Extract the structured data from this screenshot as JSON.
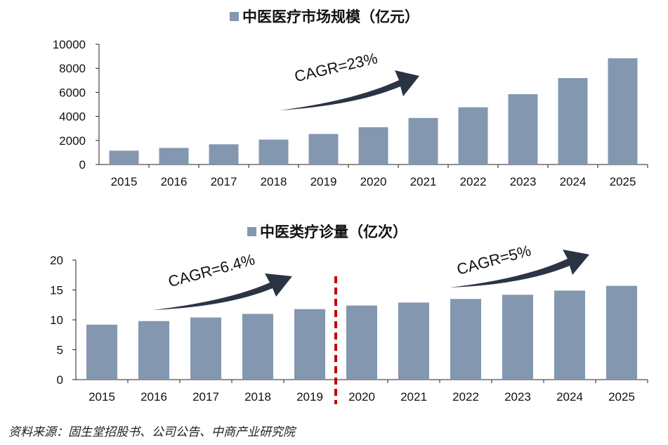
{
  "chart_data": [
    {
      "type": "bar",
      "title": "中医医疗市场规模（亿元）",
      "legend": "top",
      "categories": [
        "2015",
        "2016",
        "2017",
        "2018",
        "2019",
        "2020",
        "2021",
        "2022",
        "2023",
        "2024",
        "2025"
      ],
      "series": [
        {
          "name": "中医医疗市场规模（亿元）",
          "values": [
            1150,
            1380,
            1680,
            2070,
            2540,
            3100,
            3870,
            4760,
            5850,
            7190,
            8840
          ]
        }
      ],
      "ylim": [
        0,
        10000
      ],
      "yticks": [
        "0",
        "2000",
        "4000",
        "6000",
        "8000",
        "10000"
      ],
      "grid": false,
      "annotations": [
        {
          "text": "CAGR=23%"
        }
      ],
      "colors": {
        "bar": "#8497B0",
        "arrow": "#2B3445"
      }
    },
    {
      "type": "bar",
      "title": "中医类疗诊量（亿次）",
      "legend": "top",
      "categories": [
        "2015",
        "2016",
        "2017",
        "2018",
        "2019",
        "2020",
        "2021",
        "2022",
        "2023",
        "2024",
        "2025"
      ],
      "series": [
        {
          "name": "中医类疗诊量（亿次）",
          "values": [
            9.2,
            9.8,
            10.4,
            11.0,
            11.8,
            12.4,
            12.9,
            13.5,
            14.2,
            14.9,
            15.7
          ]
        }
      ],
      "ylim": [
        0,
        20
      ],
      "yticks": [
        "0",
        "5",
        "10",
        "15",
        "20"
      ],
      "grid": false,
      "annotations": [
        {
          "text": "CAGR=6.4%"
        },
        {
          "text": "CAGR=5%"
        }
      ],
      "colors": {
        "bar": "#8497B0",
        "arrow": "#2B3445",
        "divider": "#C00000"
      }
    }
  ],
  "source": "资料来源：固生堂招股书、公司公告、中商产业研究院"
}
